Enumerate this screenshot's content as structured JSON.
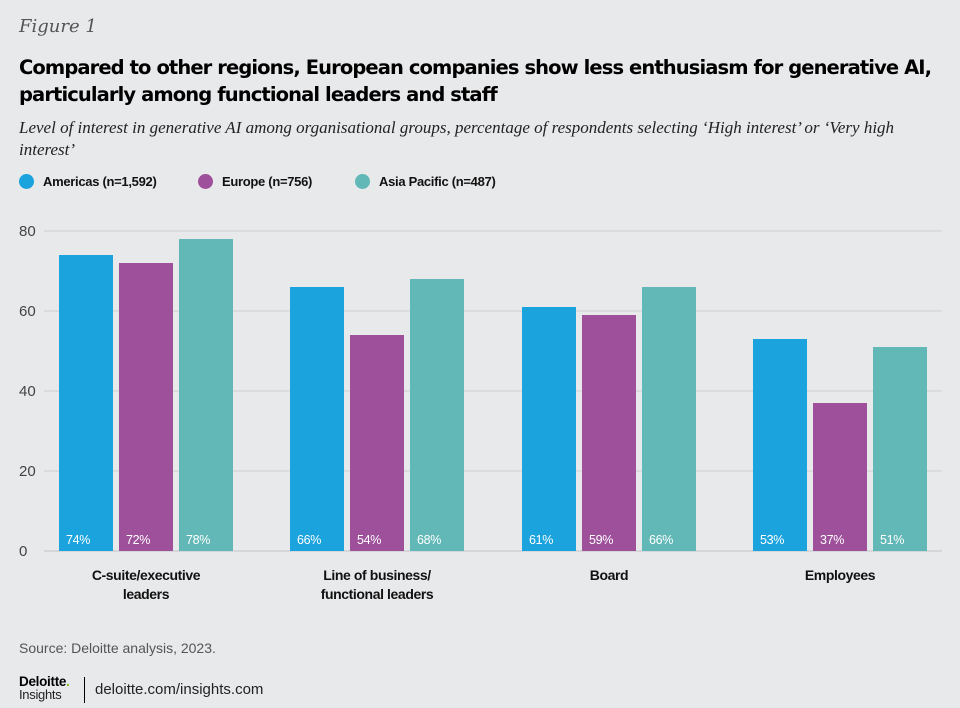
{
  "figure_label": "Figure 1",
  "title": "Compared to other regions, European companies show less enthusiasm for generative AI, particularly among functional leaders and staff",
  "subtitle": "Level of interest in generative AI among organisational groups, percentage of respondents selecting ‘High interest’ or ‘Very high interest’",
  "legend": [
    {
      "label": "Americas (n=1,592)",
      "color": "#1aa3dc"
    },
    {
      "label": "Europe (n=756)",
      "color": "#9e509b"
    },
    {
      "label": "Asia Pacific (n=487)",
      "color": "#61b8b6"
    }
  ],
  "source": "Source: Deloitte analysis, 2023.",
  "footer": {
    "logo_name": "Deloitte",
    "logo_dot": ".",
    "logo_sub": "Insights",
    "url": "deloitte.com/insights.com"
  },
  "chart_data": {
    "type": "bar",
    "title": "Compared to other regions, European companies show less enthusiasm for generative AI, particularly among functional leaders and staff",
    "xlabel": "",
    "ylabel": "",
    "ylim": [
      0,
      80
    ],
    "yticks": [
      0,
      20,
      40,
      60,
      80
    ],
    "grid": true,
    "legend_position": "top-left",
    "categories": [
      [
        "C-suite/executive",
        "leaders"
      ],
      [
        "Line of business/",
        "functional leaders"
      ],
      [
        "Board"
      ],
      [
        "Employees"
      ]
    ],
    "series": [
      {
        "name": "Americas (n=1,592)",
        "color": "#1aa3dc",
        "values": [
          74,
          66,
          61,
          53
        ],
        "labels": [
          "74%",
          "66%",
          "61%",
          "53%"
        ]
      },
      {
        "name": "Europe (n=756)",
        "color": "#9e509b",
        "values": [
          72,
          54,
          59,
          37
        ],
        "labels": [
          "72%",
          "54%",
          "59%",
          "37%"
        ]
      },
      {
        "name": "Asia Pacific (n=487)",
        "color": "#61b8b6",
        "values": [
          78,
          68,
          66,
          51
        ],
        "labels": [
          "78%",
          "68%",
          "66%",
          "51%"
        ]
      }
    ]
  }
}
